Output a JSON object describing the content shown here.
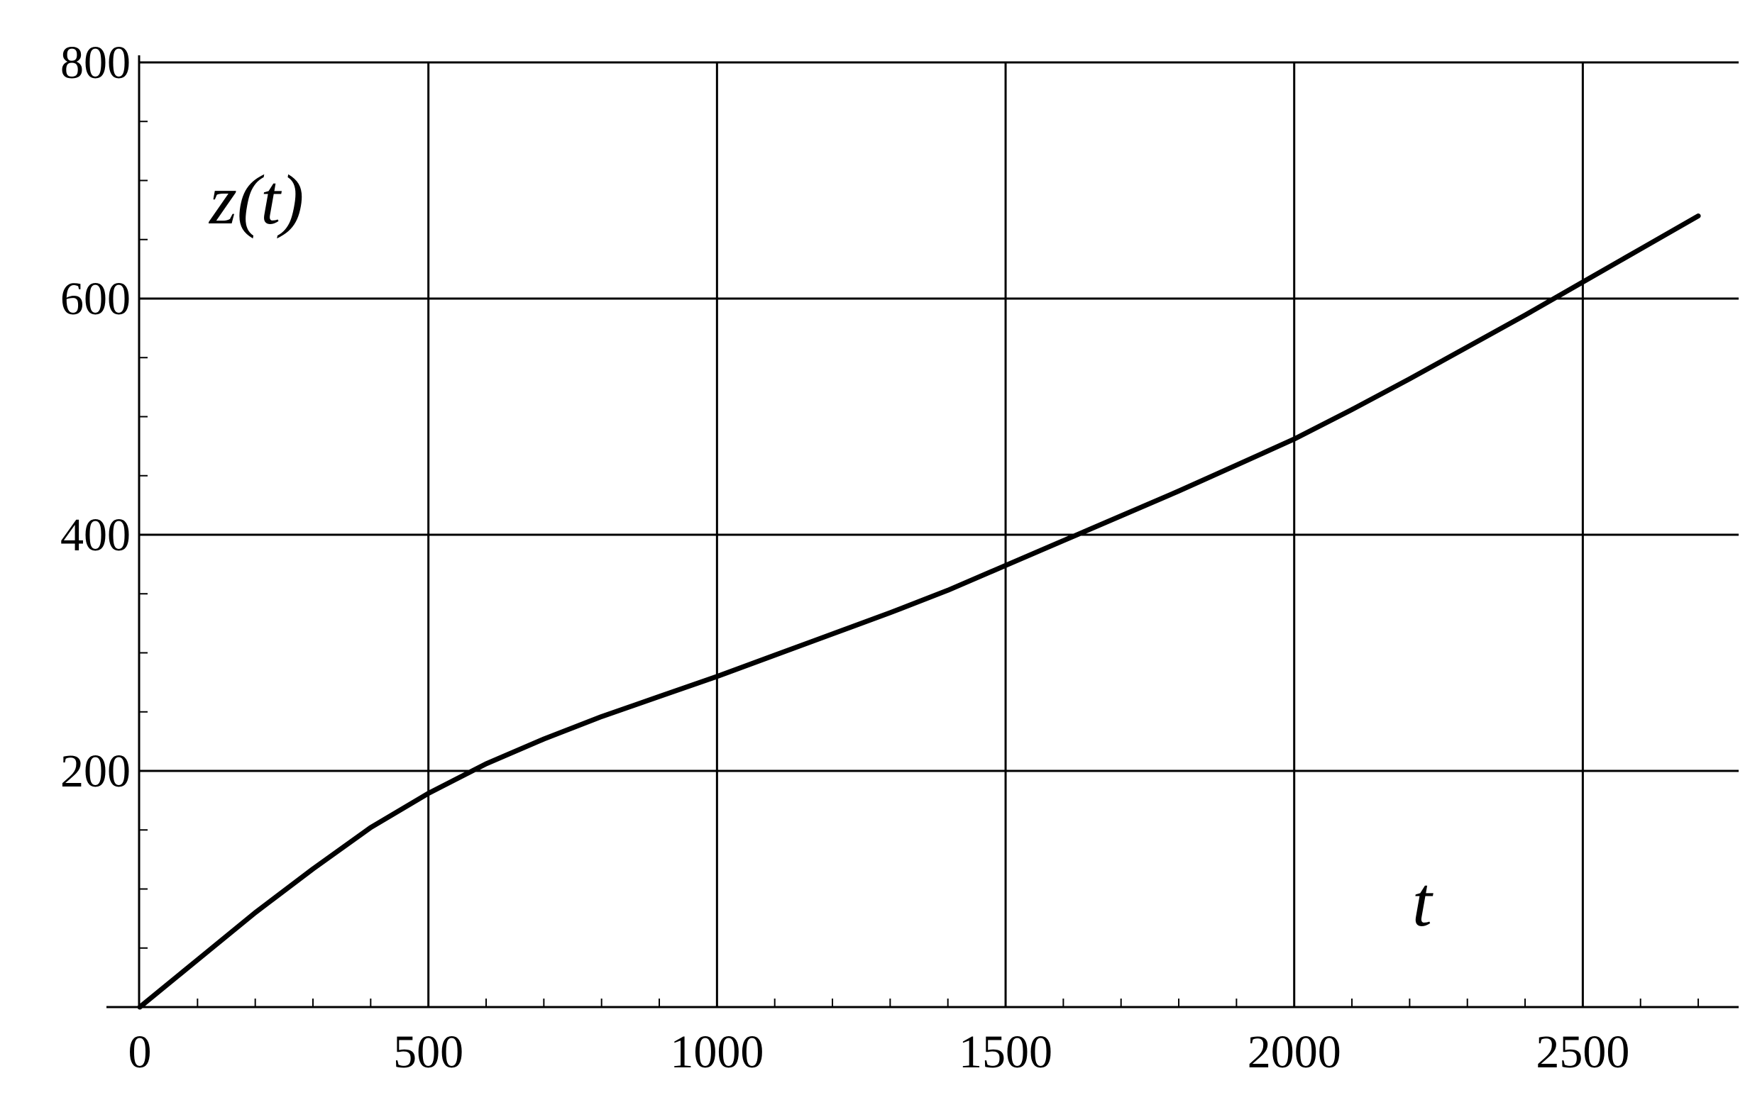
{
  "chart_data": {
    "type": "line",
    "title": "",
    "xlabel": "t",
    "ylabel": "z(t)",
    "xlim": [
      0,
      2770
    ],
    "ylim": [
      0,
      800
    ],
    "x_ticks": [
      0,
      500,
      1000,
      1500,
      2000,
      2500
    ],
    "x_tick_labels": [
      "0",
      "500",
      "1000",
      "1500",
      "2000",
      "2500"
    ],
    "y_ticks": [
      200,
      400,
      600,
      800
    ],
    "y_tick_labels": [
      "200",
      "400",
      "600",
      "800"
    ],
    "x_minor_step": 100,
    "y_minor_step": 50,
    "grid": true,
    "legend": "none",
    "line_color": "#000000",
    "series": [
      {
        "x": [
          0,
          100,
          200,
          300,
          400,
          500,
          600,
          700,
          800,
          900,
          1000,
          1100,
          1200,
          1300,
          1400,
          1500,
          1600,
          1700,
          1800,
          1900,
          2000,
          2100,
          2200,
          2300,
          2400,
          2500,
          2600,
          2700
        ],
        "values": [
          0,
          40,
          80,
          117,
          152,
          181,
          206,
          227,
          246,
          263,
          280,
          298,
          316,
          334,
          353,
          374,
          395,
          416,
          437,
          459,
          481,
          506,
          532,
          559,
          586,
          614,
          642,
          670
        ]
      }
    ]
  }
}
